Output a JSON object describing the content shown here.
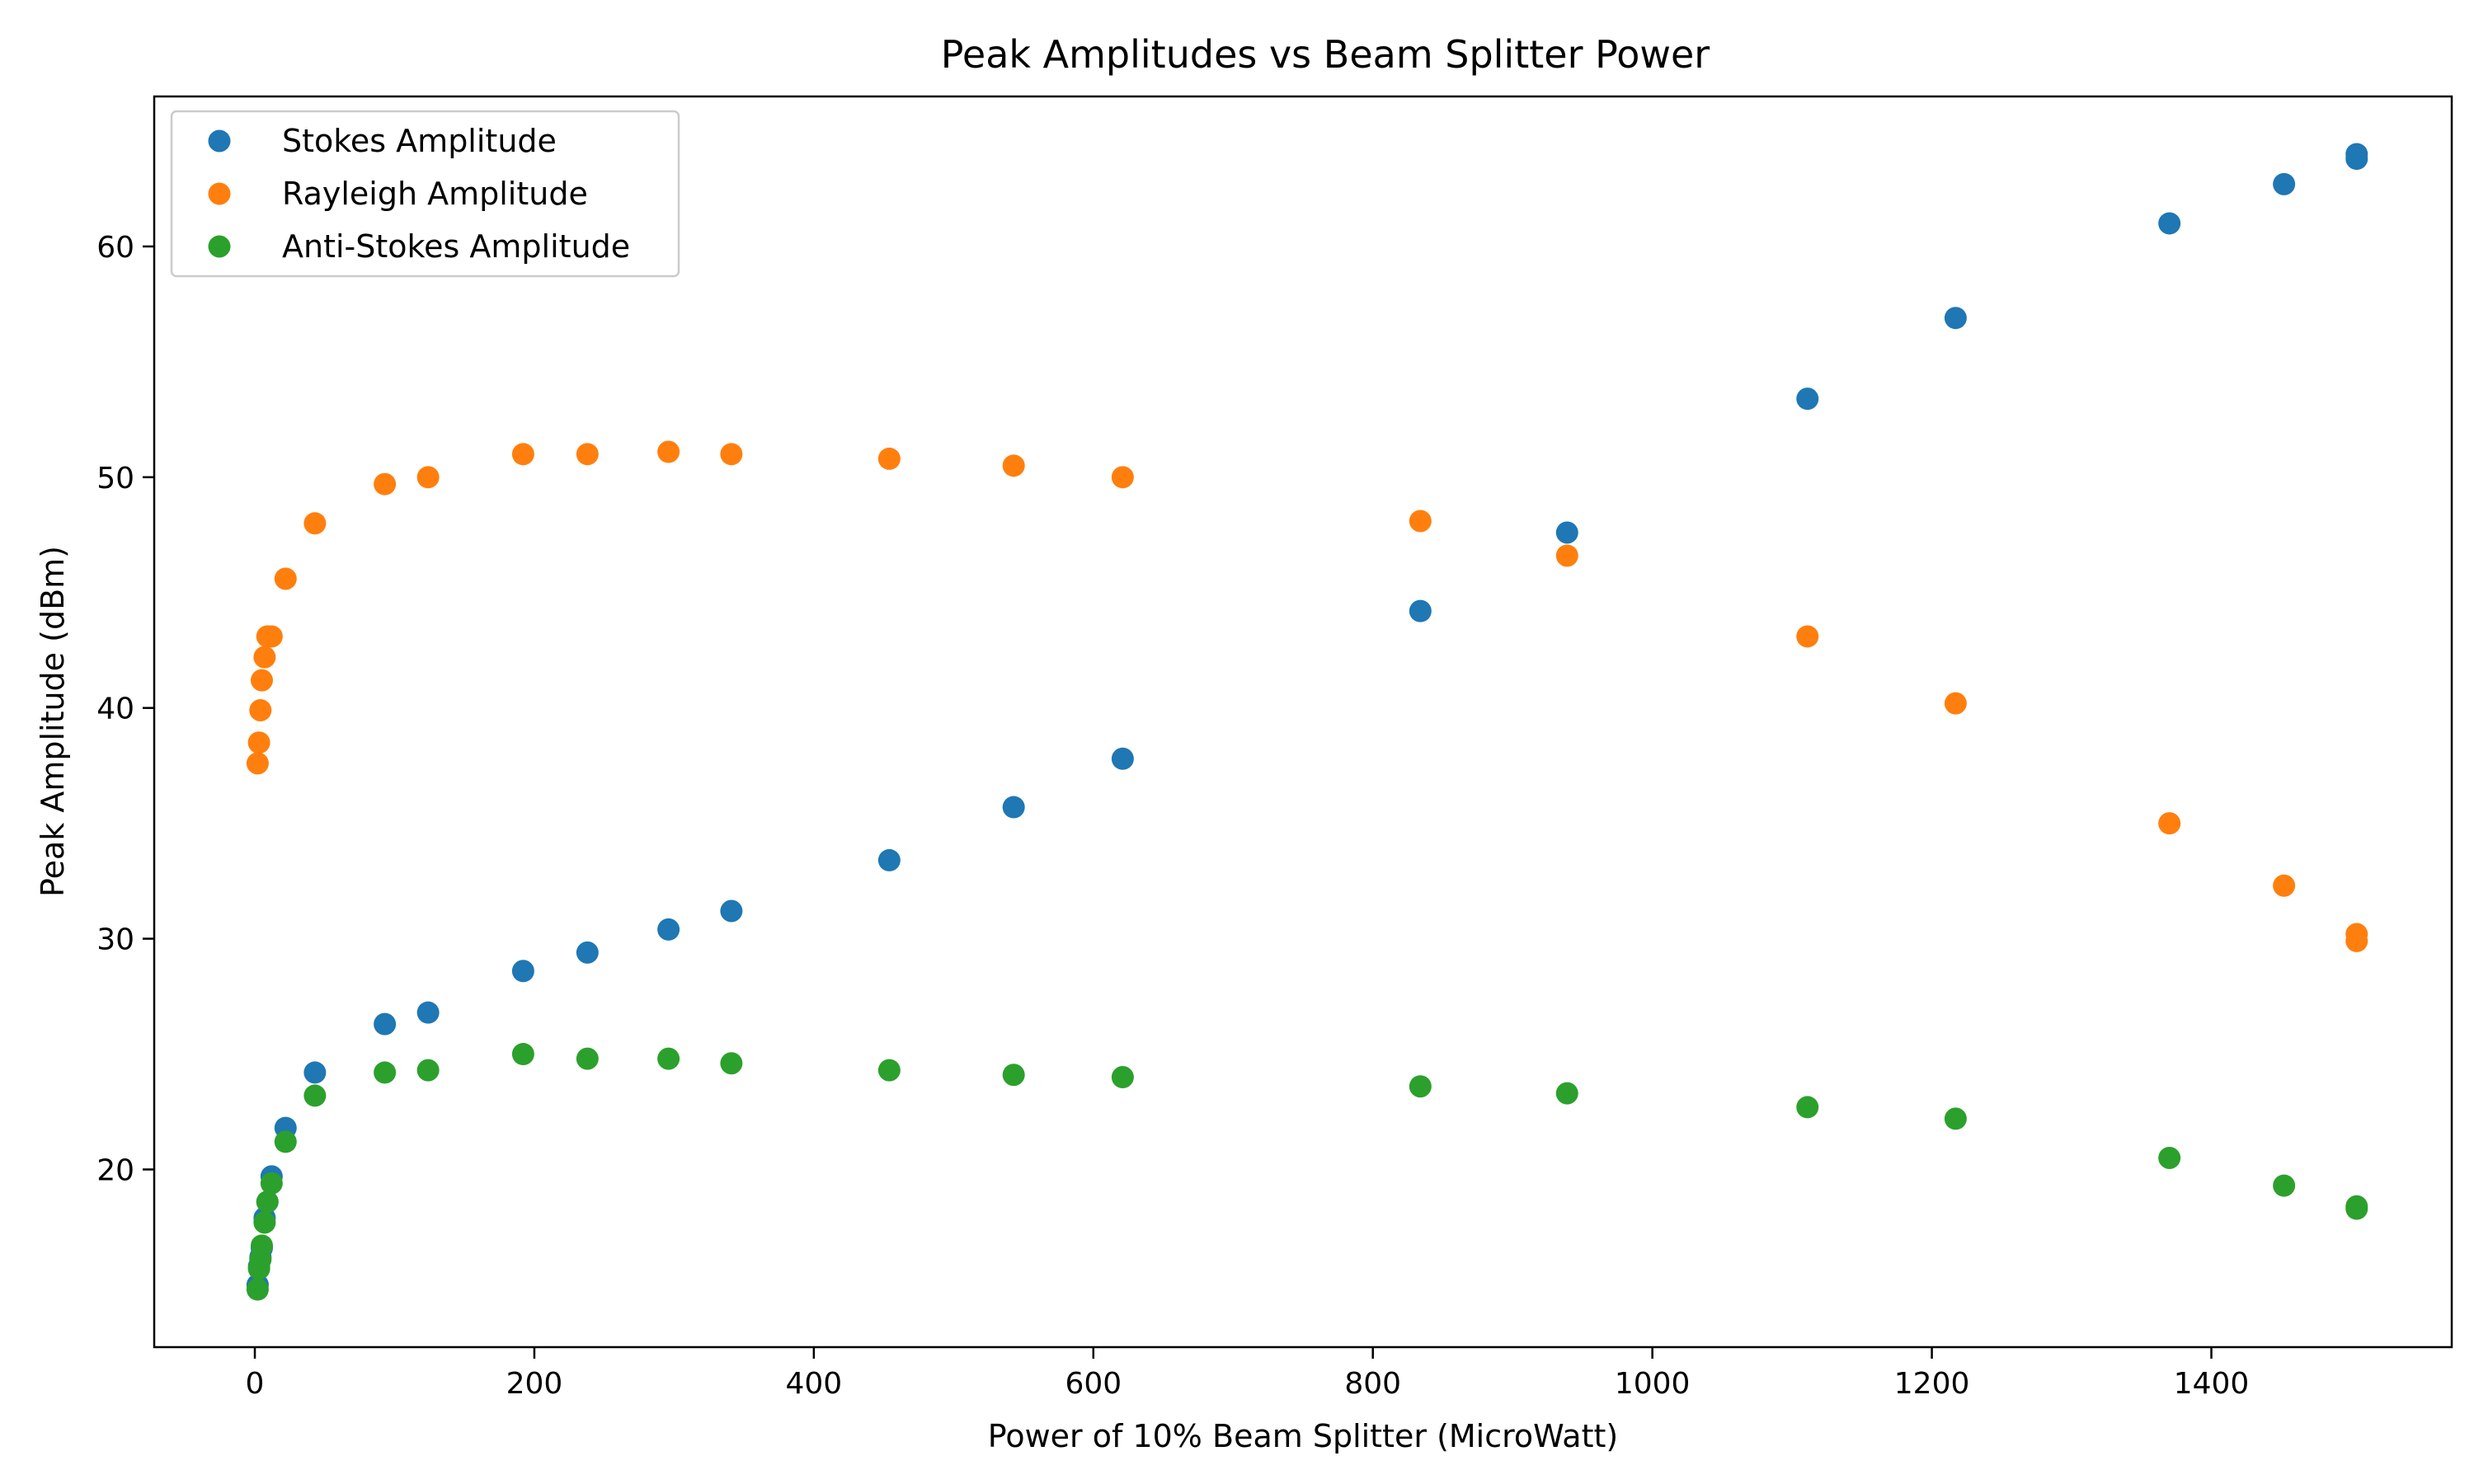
{
  "chart_data": {
    "type": "scatter",
    "title": "Peak Amplitudes vs Beam Splitter Power",
    "xlabel": "Power of 10% Beam Splitter (MicroWatt)",
    "ylabel": "Peak Amplitude (dBm)",
    "xlim": [
      -72,
      1572
    ],
    "ylim": [
      12.3,
      66.5
    ],
    "xticks": [
      0,
      200,
      400,
      600,
      800,
      1000,
      1200,
      1400
    ],
    "yticks": [
      20,
      30,
      40,
      50,
      60
    ],
    "grid": false,
    "legend_position": "upper left",
    "x": [
      2,
      3,
      4,
      5,
      7,
      9,
      12,
      22,
      43,
      93,
      124,
      192,
      238,
      296,
      341,
      454,
      543,
      621,
      834,
      939,
      1111,
      1217,
      1370,
      1452,
      1504,
      1504
    ],
    "series": [
      {
        "name": "Stokes Amplitude",
        "color": "#1f77b4",
        "values": [
          15.0,
          15.8,
          16.2,
          16.6,
          17.9,
          18.6,
          19.7,
          21.8,
          24.2,
          26.3,
          26.8,
          28.6,
          29.4,
          30.4,
          31.2,
          33.4,
          35.7,
          37.8,
          44.2,
          47.6,
          53.4,
          56.9,
          61.0,
          62.7,
          64.0,
          63.8
        ]
      },
      {
        "name": "Rayleigh Amplitude",
        "color": "#ff7f0e",
        "values": [
          37.6,
          38.5,
          39.9,
          41.2,
          42.2,
          43.1,
          43.1,
          45.6,
          48.0,
          49.7,
          50.0,
          51.0,
          51.0,
          51.1,
          51.0,
          50.8,
          50.5,
          50.0,
          48.1,
          46.6,
          43.1,
          40.2,
          35.0,
          32.3,
          30.2,
          29.9
        ]
      },
      {
        "name": "Anti-Stokes Amplitude",
        "color": "#2ca02c",
        "values": [
          14.8,
          15.7,
          16.1,
          16.7,
          17.7,
          18.6,
          19.4,
          21.2,
          23.2,
          24.2,
          24.3,
          25.0,
          24.8,
          24.8,
          24.6,
          24.3,
          24.1,
          24.0,
          23.6,
          23.3,
          22.7,
          22.2,
          20.5,
          19.3,
          18.4,
          18.3
        ]
      }
    ]
  }
}
